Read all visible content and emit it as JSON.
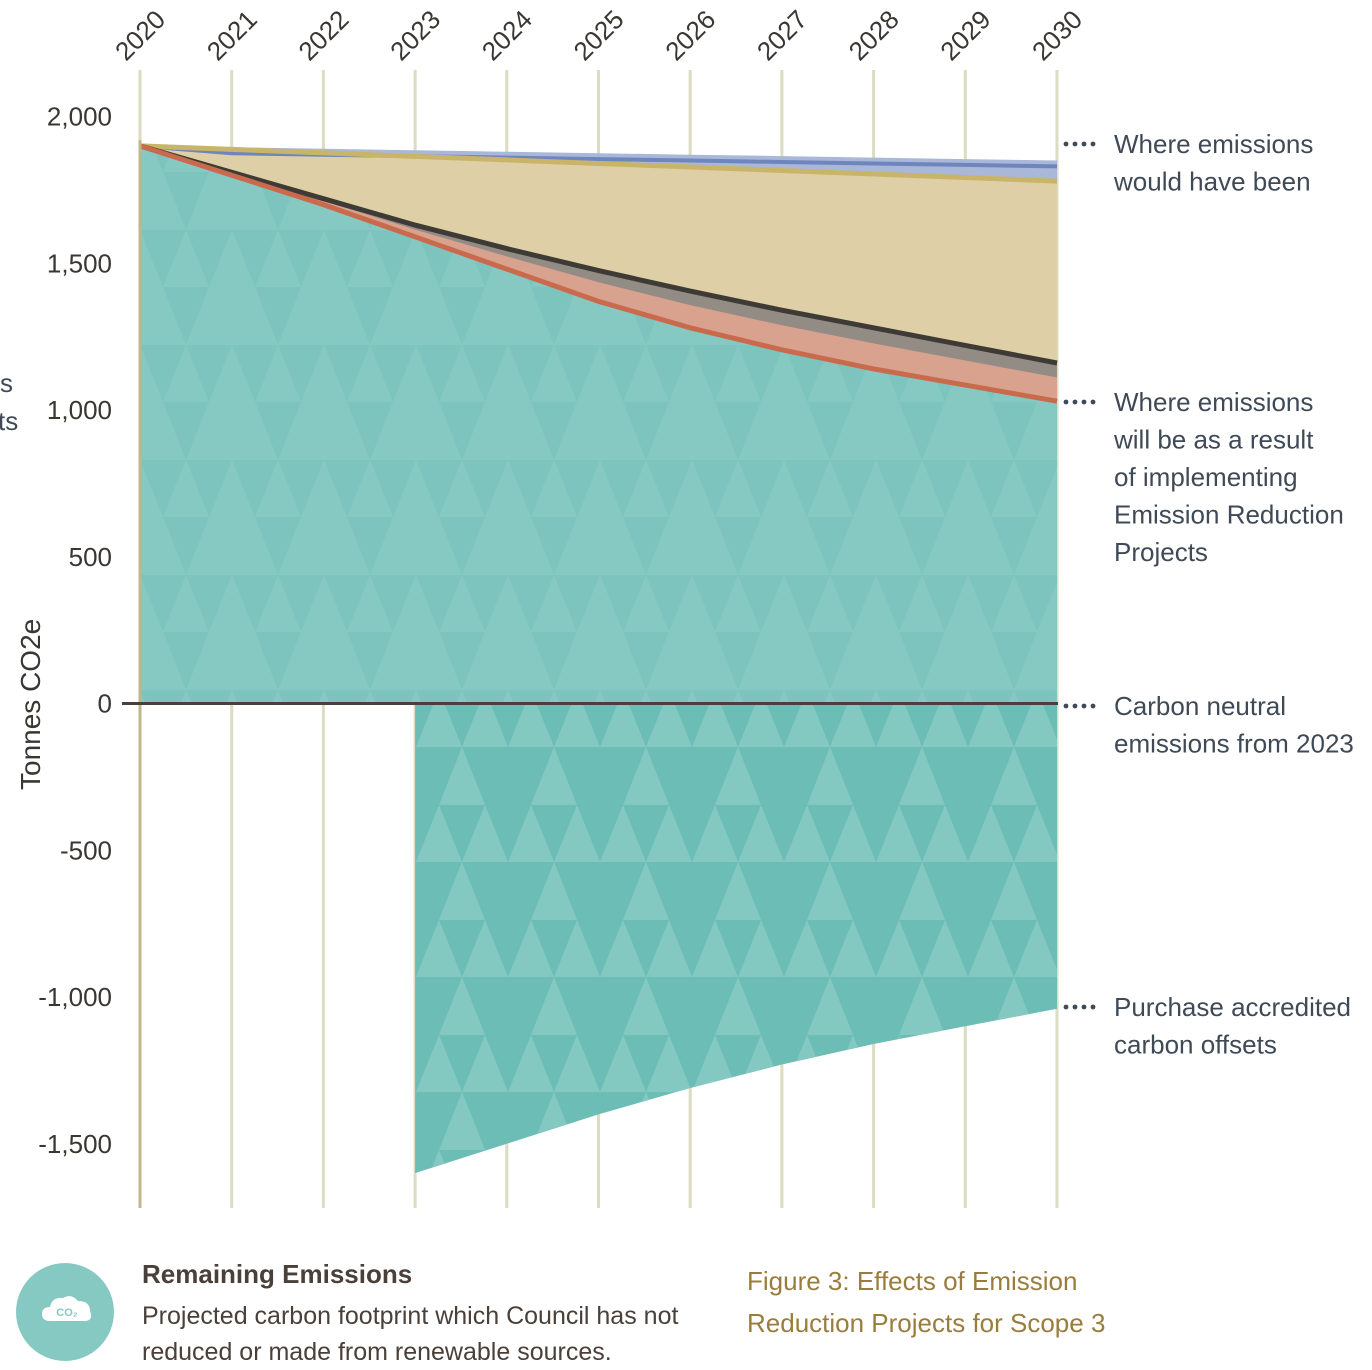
{
  "chart_data": {
    "type": "area",
    "x": [
      2020,
      2021,
      2022,
      2023,
      2024,
      2025,
      2026,
      2027,
      2028,
      2029,
      2030
    ],
    "ylabel": "Tonnes CO2e",
    "ylim": [
      -1600,
      2000
    ],
    "yticks": [
      2000,
      1500,
      1000,
      500,
      0,
      -500,
      -1000,
      -1500
    ],
    "ytick_labels": [
      "2,000",
      "1,500",
      "1,000",
      "500",
      "0",
      "-500",
      "-1,000",
      "-1,500"
    ],
    "series": [
      {
        "values": [
          1900,
          1895,
          1890,
          1885,
          1880,
          1875,
          1870,
          1865,
          1860,
          1855,
          1850
        ],
        "color": "#a9b7d8"
      },
      {
        "values": [
          1900,
          1888,
          1876,
          1864,
          1852,
          1840,
          1828,
          1816,
          1804,
          1792,
          1780
        ],
        "color": "#dfcfa6"
      },
      {
        "values": [
          1900,
          1810,
          1720,
          1630,
          1550,
          1475,
          1405,
          1340,
          1280,
          1220,
          1160
        ],
        "color": "#938c84"
      },
      {
        "values": [
          1900,
          1800,
          1700,
          1590,
          1480,
          1370,
          1280,
          1205,
          1140,
          1085,
          1030
        ],
        "color": "#d9a28f"
      },
      {
        "values": [
          1900,
          1800,
          1700,
          1590,
          1480,
          1370,
          1280,
          1205,
          1140,
          1085,
          1030
        ],
        "color": "#86c9c3"
      },
      {
        "values": [
          null,
          null,
          null,
          -1600,
          -1500,
          -1400,
          -1310,
          -1230,
          -1160,
          -1100,
          -1040
        ],
        "color": "#6cbdb6"
      }
    ],
    "annotations": [
      {
        "lines": [
          "Where emissions",
          "would have been"
        ]
      },
      {
        "lines": [
          "Where emissions",
          "will be as a result",
          "of implementing",
          "Emission Reduction",
          "Projects"
        ]
      },
      {
        "lines": [
          "Carbon neutral",
          "emissions from 2023"
        ]
      },
      {
        "lines": [
          "Purchase accredited",
          "carbon offsets"
        ]
      }
    ],
    "clipped_left_text": [
      "s",
      "ts"
    ]
  },
  "legend": {
    "icon_text": "CO₂",
    "title": "Remaining Emissions",
    "text": "Projected carbon footprint which Council has not reduced or made from renewable sources."
  },
  "caption": {
    "label": "Figure 3:",
    "text": "Effects of Emission Reduction Projects for Scope 3"
  },
  "colors": {
    "teal": "#86c9c3",
    "teal_dark": "#6cbdb6",
    "grid": "#dcdcc2",
    "axis": "#4a4039",
    "red_line": "#c96a4d",
    "blue_line": "#6e85bd",
    "gold_line": "#c9b56a"
  }
}
